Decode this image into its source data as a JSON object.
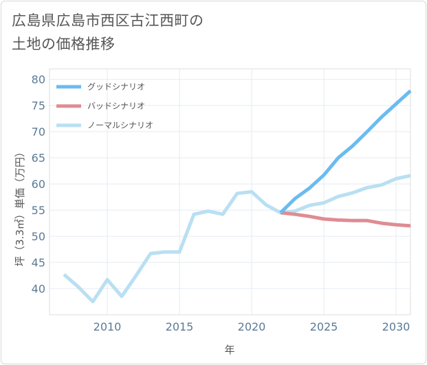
{
  "title": {
    "line1": "広島県広島市西区古江西町の",
    "line2": "土地の価格推移"
  },
  "chart_data": {
    "type": "line",
    "xlabel": "年",
    "ylabel": "坪（3.3㎡）単価（万円）",
    "xlim": [
      2006,
      2031
    ],
    "ylim": [
      35,
      82
    ],
    "xticks": [
      2010,
      2015,
      2020,
      2025,
      2030
    ],
    "yticks": [
      40,
      45,
      50,
      55,
      60,
      65,
      70,
      75,
      80
    ],
    "grid": true,
    "legend_position": "top-left",
    "series": [
      {
        "name": "グッドシナリオ",
        "color": "#6bbbef",
        "x": [
          2022,
          2023,
          2024,
          2025,
          2026,
          2027,
          2028,
          2029,
          2030,
          2031
        ],
        "y": [
          54.5,
          57.2,
          59.2,
          61.7,
          65.0,
          67.3,
          70.0,
          72.8,
          75.3,
          77.8
        ]
      },
      {
        "name": "バッドシナリオ",
        "color": "#df8c93",
        "x": [
          2022,
          2023,
          2024,
          2025,
          2026,
          2027,
          2028,
          2029,
          2030,
          2031
        ],
        "y": [
          54.5,
          54.2,
          53.8,
          53.3,
          53.1,
          53.0,
          53.0,
          52.5,
          52.2,
          52.0
        ]
      },
      {
        "name": "ノーマルシナリオ",
        "color": "#b9dff2",
        "x": [
          2007,
          2008,
          2009,
          2010,
          2011,
          2012,
          2013,
          2014,
          2015,
          2016,
          2017,
          2018,
          2019,
          2020,
          2021,
          2022,
          2023,
          2024,
          2025,
          2026,
          2027,
          2028,
          2029,
          2030,
          2031
        ],
        "y": [
          42.7,
          40.3,
          37.5,
          41.7,
          38.5,
          42.5,
          46.7,
          47.0,
          47.0,
          54.2,
          54.8,
          54.2,
          58.2,
          58.5,
          56.0,
          54.5,
          54.8,
          55.9,
          56.4,
          57.6,
          58.3,
          59.3,
          59.8,
          61.0,
          61.6
        ]
      }
    ]
  }
}
